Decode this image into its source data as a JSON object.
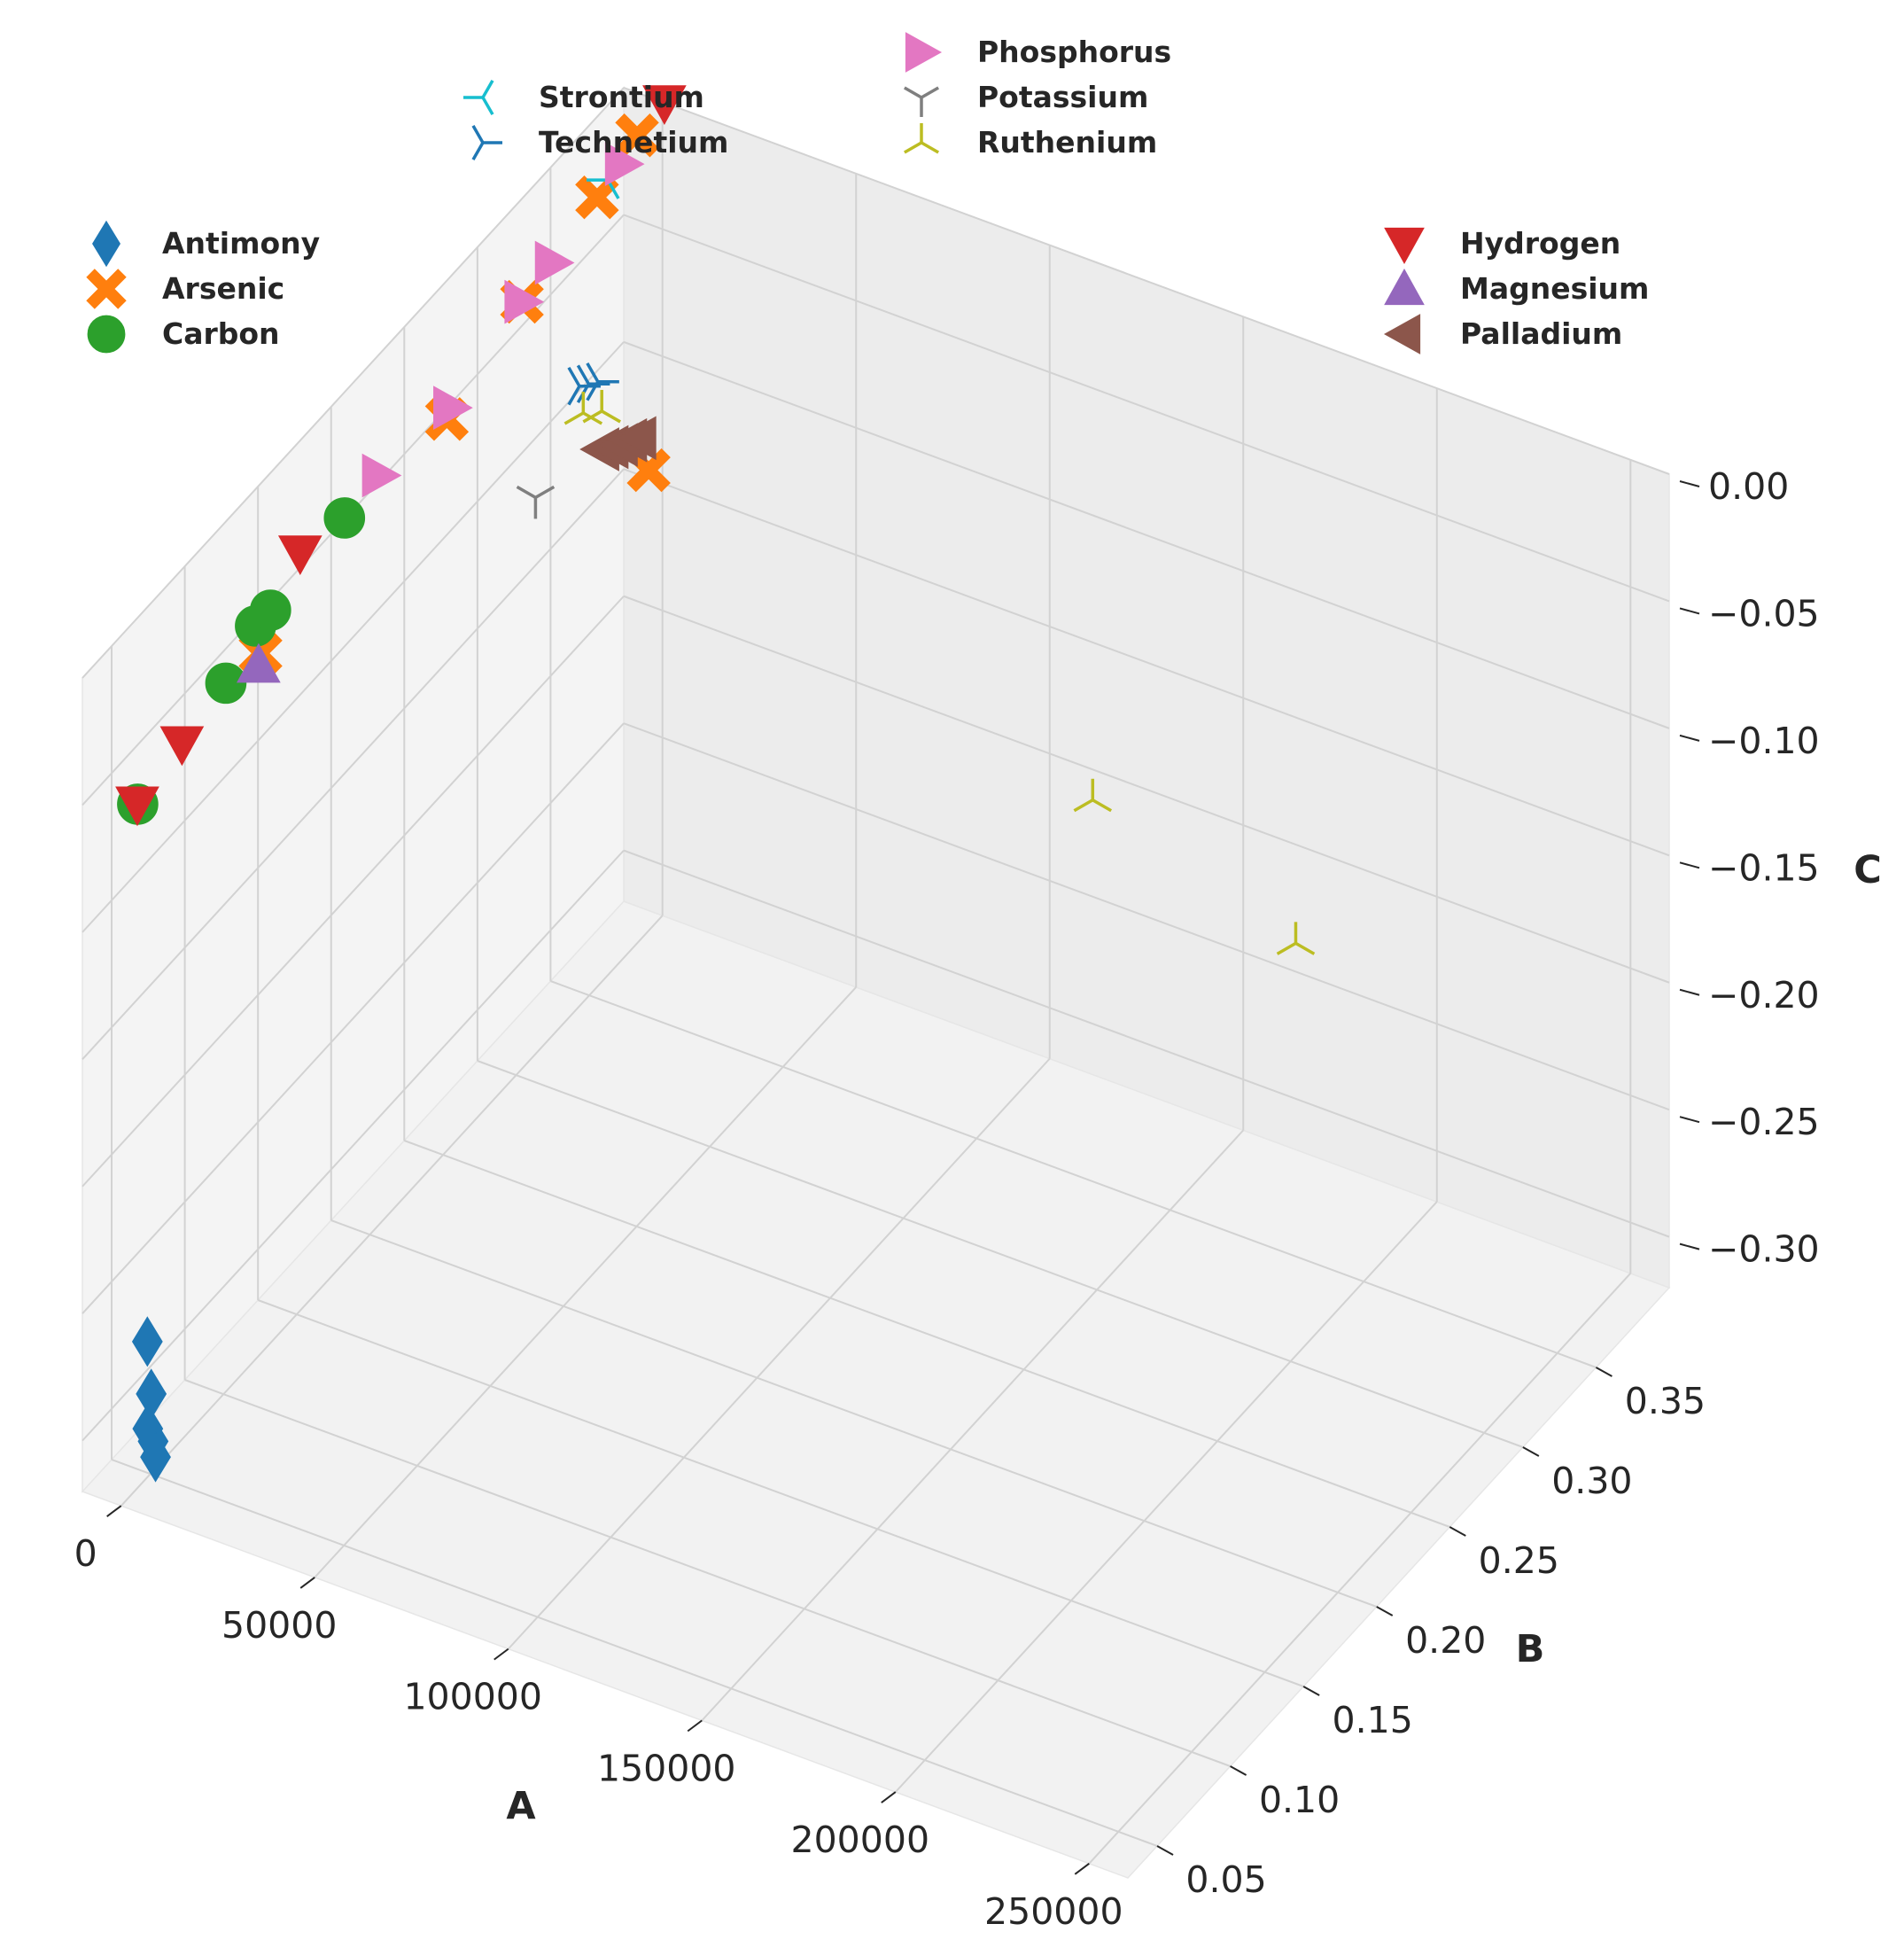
{
  "chart_data": {
    "type": "scatter",
    "projection": "3d",
    "xlabel": "A",
    "ylabel": "B",
    "zlabel": "C",
    "xlim": [
      -10000,
      260000
    ],
    "ylim": [
      0.03,
      0.4
    ],
    "zlim": [
      -0.32,
      0.0
    ],
    "xticks": [
      0,
      50000,
      100000,
      150000,
      200000,
      250000
    ],
    "xtick_labels": [
      "0",
      "50000",
      "100000",
      "150000",
      "200000",
      "250000"
    ],
    "yticks": [
      0.05,
      0.1,
      0.15,
      0.2,
      0.25,
      0.3,
      0.35
    ],
    "ytick_labels": [
      "0.05",
      "0.10",
      "0.15",
      "0.20",
      "0.25",
      "0.30",
      "0.35"
    ],
    "zticks": [
      0.0,
      -0.05,
      -0.1,
      -0.15,
      -0.2,
      -0.25,
      -0.3
    ],
    "ztick_labels": [
      "0.00",
      "−0.05",
      "−0.10",
      "−0.15",
      "−0.20",
      "−0.25",
      "−0.30"
    ],
    "grid": true,
    "legends": [
      {
        "placement": "upper-left",
        "entries": [
          "Antimony",
          "Arsenic",
          "Carbon"
        ]
      },
      {
        "placement": "top-center",
        "entries": [
          "Strontium",
          "Technetium",
          "Phosphorus",
          "Potassium",
          "Ruthenium"
        ]
      },
      {
        "placement": "upper-right",
        "entries": [
          "Hydrogen",
          "Magnesium",
          "Palladium"
        ]
      }
    ],
    "series": [
      {
        "name": "Antimony",
        "marker": "diamond",
        "color": "#1f77b4",
        "points": [
          [
            3000,
            0.04,
            -0.26
          ],
          [
            4000,
            0.04,
            -0.28
          ],
          [
            5000,
            0.035,
            -0.29
          ],
          [
            6000,
            0.036,
            -0.295
          ],
          [
            7000,
            0.035,
            -0.3
          ]
        ]
      },
      {
        "name": "Arsenic",
        "marker": "x-filled",
        "color": "#ff7f0e",
        "points": [
          [
            1000,
            0.38,
            0.0
          ],
          [
            2000,
            0.35,
            -0.005
          ],
          [
            1500,
            0.3,
            -0.015
          ],
          [
            1000,
            0.25,
            -0.03
          ],
          [
            2000,
            0.12,
            -0.04
          ],
          [
            4000,
            0.38,
            -0.13
          ]
        ]
      },
      {
        "name": "Carbon",
        "marker": "circle",
        "color": "#2ca02c",
        "points": [
          [
            500,
            0.04,
            -0.05
          ],
          [
            600,
            0.1,
            -0.04
          ],
          [
            700,
            0.12,
            -0.03
          ],
          [
            800,
            0.13,
            -0.03
          ],
          [
            1000,
            0.18,
            -0.025
          ]
        ]
      },
      {
        "name": "Strontium",
        "marker": "tri-left",
        "color": "#17becf",
        "points": [
          [
            1000,
            0.36,
            -0.005
          ]
        ]
      },
      {
        "name": "Technetium",
        "marker": "tri-right",
        "color": "#1f77b4",
        "points": [
          [
            5000,
            0.33,
            -0.065
          ],
          [
            5500,
            0.335,
            -0.067
          ],
          [
            6000,
            0.34,
            -0.069
          ]
        ]
      },
      {
        "name": "Phosphorus",
        "marker": "triangle-right",
        "color": "#e377c2",
        "points": [
          [
            1000,
            0.37,
            -0.005
          ],
          [
            1500,
            0.3,
            -0.015
          ],
          [
            1800,
            0.32,
            -0.012
          ],
          [
            2000,
            0.25,
            -0.025
          ],
          [
            2500,
            0.2,
            -0.02
          ]
        ]
      },
      {
        "name": "Potassium",
        "marker": "tri-down",
        "color": "#7f7f7f",
        "points": [
          [
            5000,
            0.3,
            -0.09
          ]
        ]
      },
      {
        "name": "Ruthenium",
        "marker": "tri-up",
        "color": "#bcbd22",
        "points": [
          [
            6000,
            0.33,
            -0.075
          ],
          [
            7000,
            0.34,
            -0.08
          ],
          [
            130000,
            0.35,
            -0.17
          ],
          [
            190000,
            0.33,
            -0.18
          ]
        ]
      },
      {
        "name": "Hydrogen",
        "marker": "triangle-down",
        "color": "#d62728",
        "points": [
          [
            500,
            0.4,
            0.0
          ],
          [
            400,
            0.04,
            -0.05
          ],
          [
            600,
            0.07,
            -0.045
          ],
          [
            900,
            0.15,
            -0.02
          ]
        ]
      },
      {
        "name": "Magnesium",
        "marker": "triangle-up",
        "color": "#9467bd",
        "points": [
          [
            1500,
            0.12,
            -0.045
          ]
        ]
      },
      {
        "name": "Palladium",
        "marker": "triangle-left",
        "color": "#8c564b",
        "points": [
          [
            7000,
            0.34,
            -0.095
          ],
          [
            7500,
            0.345,
            -0.097
          ],
          [
            8000,
            0.35,
            -0.099
          ],
          [
            8500,
            0.355,
            -0.1
          ],
          [
            9000,
            0.36,
            -0.102
          ]
        ]
      }
    ]
  }
}
